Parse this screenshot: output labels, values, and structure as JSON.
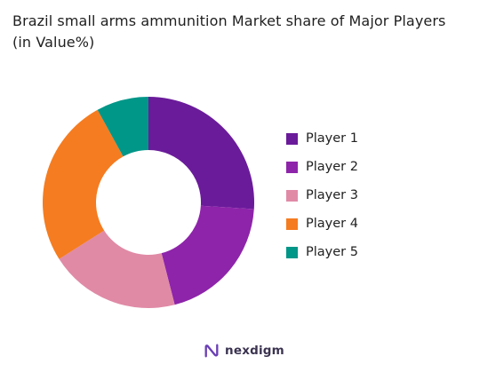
{
  "chart_data": {
    "type": "pie",
    "title": "Brazil small arms ammunition Market share of Major Players",
    "subtitle": "(in Value%)",
    "categories": [
      "Player 1",
      "Player 2",
      "Player 3",
      "Player 4",
      "Player 5"
    ],
    "values": [
      26,
      20,
      20,
      26,
      8
    ],
    "colors": [
      "#6a1b9a",
      "#8e24aa",
      "#e08aa6",
      "#f57c20",
      "#009688"
    ],
    "legend_position": "right",
    "donut": true
  },
  "logo": {
    "text": "nexdigm",
    "icon": "nexdigm-logo-icon",
    "color": "#6a3fb5"
  }
}
